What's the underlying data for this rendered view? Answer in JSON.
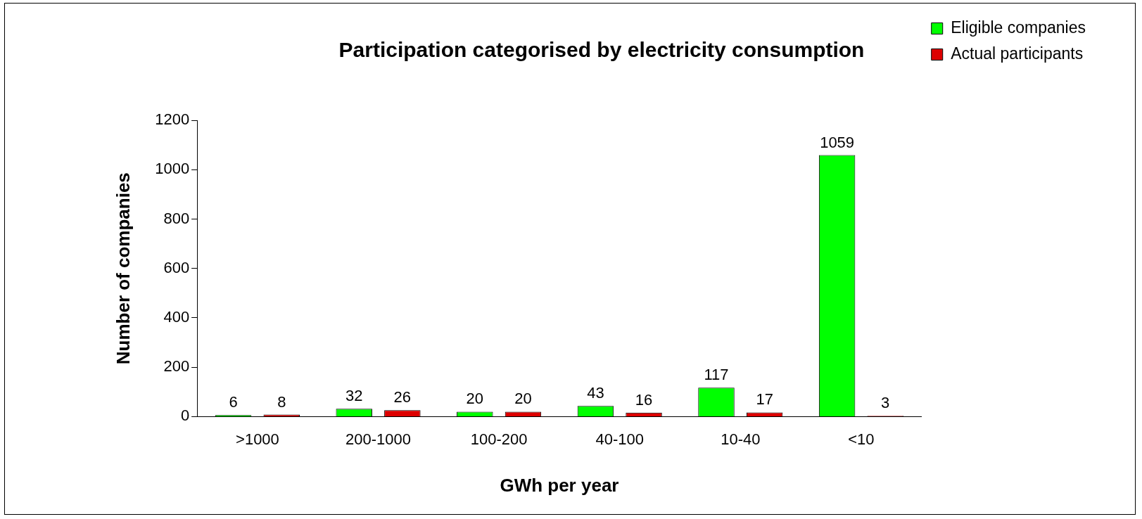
{
  "chart_data": {
    "type": "bar",
    "title": "Participation categorised by electricity consumption",
    "xlabel": "GWh per year",
    "ylabel": "Number of companies",
    "categories": [
      ">1000",
      "200-1000",
      "100-200",
      "40-100",
      "10-40",
      "<10"
    ],
    "series": [
      {
        "name": "Eligible companies",
        "color": "#00ff00",
        "values": [
          6,
          32,
          20,
          43,
          117,
          1059
        ]
      },
      {
        "name": "Actual participants",
        "color": "#dd0000",
        "values": [
          8,
          26,
          20,
          16,
          17,
          3
        ]
      }
    ],
    "ylim": [
      0,
      1200
    ],
    "yticks": [
      0,
      200,
      400,
      600,
      800,
      1000,
      1200
    ],
    "grid": false,
    "legend": "top right",
    "data_labels": true
  }
}
